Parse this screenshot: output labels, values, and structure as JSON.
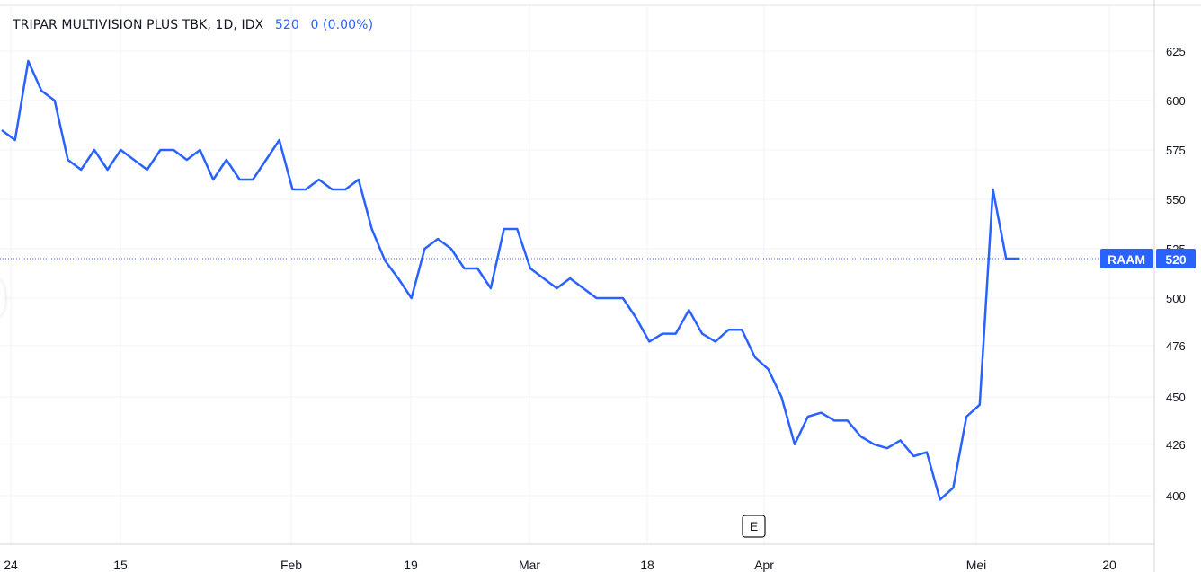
{
  "header": {
    "title": "TRIPAR MULTIVISION PLUS TBK, 1D, IDX",
    "last_value": "520",
    "change": "0 (0.00%)"
  },
  "event_marker": {
    "label": "E"
  },
  "price_tag": {
    "symbol": "RAAM",
    "value": "520"
  },
  "colors": {
    "line": "#2962ff",
    "grid": "#f0f3fa",
    "text": "#131722",
    "axis": "#d1d4dc"
  },
  "chart_data": {
    "type": "line",
    "title": "TRIPAR MULTIVISION PLUS TBK, 1D, IDX",
    "xlabel": "",
    "ylabel": "",
    "ylim": [
      381,
      640
    ],
    "y_ticks": [
      625,
      600,
      575,
      550,
      525,
      500,
      476,
      450,
      426,
      400
    ],
    "x_tick_labels": [
      "24",
      "15",
      "Feb",
      "19",
      "Mar",
      "18",
      "Apr",
      "Mei",
      "20"
    ],
    "grid": true,
    "last_price": 520,
    "series": [
      {
        "values": [
          585,
          580,
          620,
          605,
          600,
          570,
          565,
          575,
          565,
          575,
          570,
          565,
          575,
          575,
          570,
          575,
          560,
          570,
          560,
          560,
          570,
          580,
          555,
          555,
          560,
          555,
          555,
          560,
          535,
          519,
          510,
          500,
          525,
          530,
          525,
          515,
          515,
          505,
          535,
          535,
          515,
          510,
          505,
          510,
          505,
          500,
          500,
          500,
          490,
          478,
          482,
          482,
          494,
          482,
          478,
          484,
          484,
          470,
          464,
          450,
          426,
          440,
          442,
          438,
          438,
          430,
          426,
          424,
          428,
          420,
          422,
          398,
          404,
          440,
          446,
          555,
          520,
          520
        ]
      }
    ]
  }
}
